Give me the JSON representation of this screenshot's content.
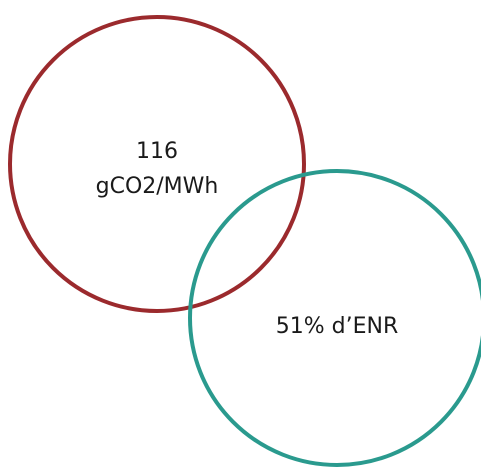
{
  "diagram": {
    "carbon_circle": {
      "line1": "116",
      "line2": "gCO2/MWh",
      "color": "#9b2a2d"
    },
    "renewable_circle": {
      "label": "51% d’ENR",
      "color": "#2a9a8e"
    }
  }
}
